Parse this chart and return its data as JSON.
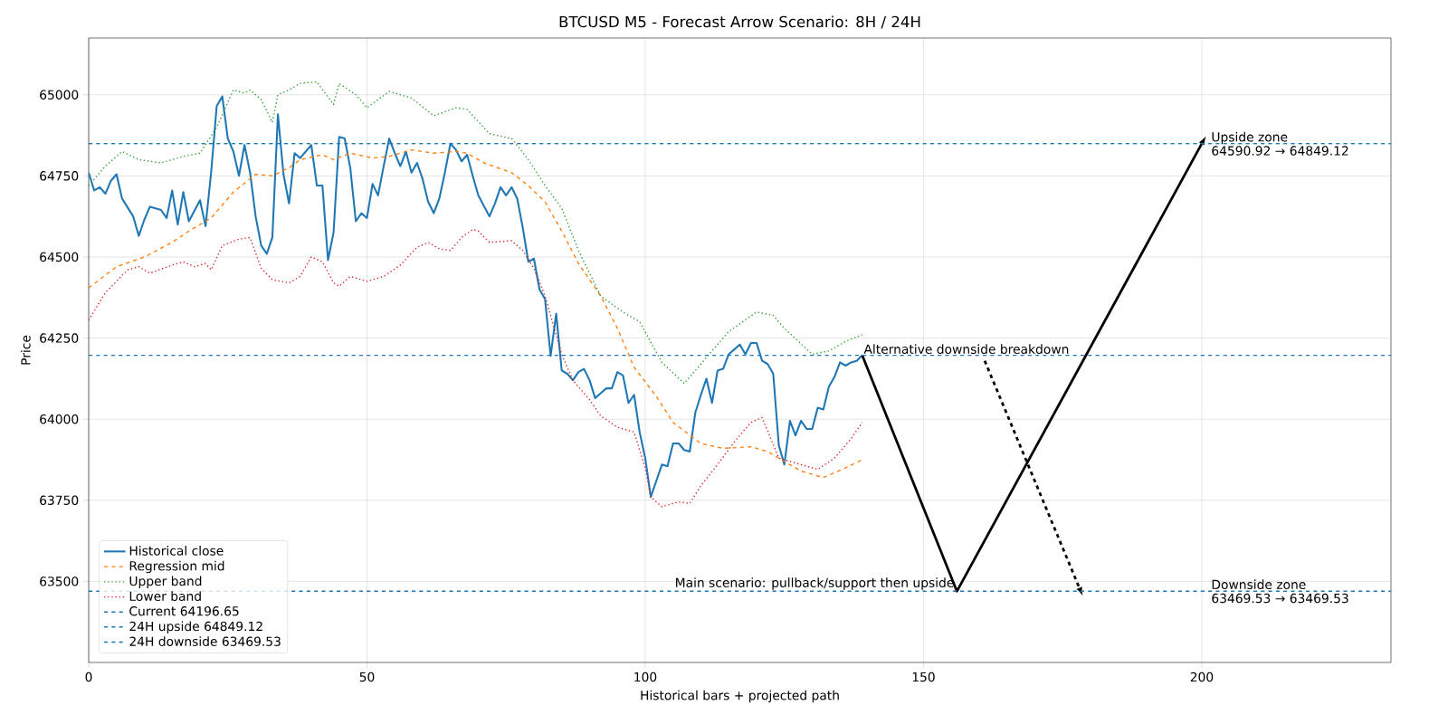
{
  "chart_data": {
    "type": "line",
    "title": "BTCUSD M5 - Forecast Arrow Scenario: 8H / 24H",
    "xlabel": "Historical bars + projected path",
    "ylabel": "Price",
    "xlim": [
      0,
      234
    ],
    "ylim": [
      63250,
      65175
    ],
    "xticks": [
      0,
      50,
      100,
      150,
      200
    ],
    "yticks": [
      63500,
      63750,
      64000,
      64250,
      64500,
      64750,
      65000
    ],
    "grid": true,
    "legend": "bottom left",
    "series": [
      {
        "name": "Historical close",
        "color": "#1f77b4",
        "line_style": "solid",
        "x": [
          0,
          1,
          2,
          3,
          4,
          5,
          6,
          8,
          9,
          10,
          11,
          13,
          14,
          15,
          16,
          17,
          18,
          20,
          21,
          22,
          23,
          24,
          25,
          26,
          27,
          28,
          29,
          30,
          31,
          32,
          33,
          34,
          35,
          36,
          37,
          38,
          40,
          41,
          42,
          43,
          44,
          45,
          46,
          47,
          48,
          49,
          50,
          51,
          52,
          53,
          54,
          55,
          56,
          57,
          58,
          59,
          60,
          61,
          62,
          63,
          64,
          65,
          66,
          67,
          68,
          69,
          70,
          72,
          73,
          74,
          75,
          76,
          77,
          78,
          79,
          80,
          81,
          82,
          83,
          84,
          85,
          86,
          87,
          88,
          89,
          90,
          91,
          92,
          93,
          94,
          95,
          96,
          97,
          98,
          99,
          100,
          101,
          102,
          103,
          104,
          105,
          106,
          107,
          108,
          109,
          110,
          111,
          112,
          113,
          114,
          115,
          116,
          117,
          118,
          119,
          120,
          121,
          122,
          123,
          124,
          125,
          126,
          127,
          128,
          129,
          130,
          131,
          132,
          133,
          134,
          135,
          136,
          137,
          138,
          139
        ],
        "values": [
          64760,
          64705,
          64715,
          64695,
          64735,
          64755,
          64680,
          64625,
          64565,
          64615,
          64655,
          64645,
          64620,
          64705,
          64600,
          64700,
          64610,
          64675,
          64595,
          64760,
          64965,
          64995,
          64865,
          64825,
          64750,
          64845,
          64760,
          64625,
          64535,
          64510,
          64560,
          64940,
          64755,
          64665,
          64820,
          64805,
          64845,
          64720,
          64720,
          64490,
          64575,
          64870,
          64865,
          64775,
          64610,
          64635,
          64620,
          64725,
          64690,
          64780,
          64865,
          64820,
          64780,
          64825,
          64760,
          64790,
          64740,
          64670,
          64635,
          64680,
          64760,
          64850,
          64830,
          64795,
          64815,
          64750,
          64690,
          64625,
          64665,
          64715,
          64690,
          64715,
          64680,
          64590,
          64485,
          64495,
          64400,
          64370,
          64195,
          64325,
          64150,
          64140,
          64120,
          64145,
          64155,
          64120,
          64065,
          64080,
          64095,
          64095,
          64145,
          64135,
          64050,
          64075,
          63960,
          63880,
          63760,
          63810,
          63860,
          63855,
          63925,
          63925,
          63905,
          63900,
          64020,
          64075,
          64125,
          64050,
          64150,
          64155,
          64200,
          64215,
          64230,
          64200,
          64235,
          64235,
          64180,
          64170,
          64140,
          63920,
          63860,
          63995,
          63950,
          63995,
          63970,
          63970,
          64035,
          64030,
          64100,
          64130,
          64175,
          64165,
          64175,
          64180,
          64197
        ]
      },
      {
        "name": "Regression mid",
        "color": "#ff7f0e",
        "line_style": "dashed",
        "x": [
          0,
          5,
          10,
          15,
          18,
          22,
          26,
          30,
          33,
          36,
          38,
          42,
          44,
          47,
          51,
          54,
          58,
          62,
          66,
          68,
          71,
          76,
          79,
          82,
          85,
          88,
          92,
          95,
          98,
          102,
          105,
          110,
          114,
          119,
          122,
          125,
          128,
          132,
          136,
          139
        ],
        "values": [
          64405,
          64470,
          64500,
          64545,
          64580,
          64620,
          64700,
          64755,
          64750,
          64775,
          64800,
          64815,
          64800,
          64820,
          64805,
          64810,
          64830,
          64820,
          64825,
          64820,
          64790,
          64760,
          64720,
          64670,
          64580,
          64480,
          64380,
          64280,
          64160,
          64070,
          63990,
          63925,
          63910,
          63915,
          63900,
          63870,
          63840,
          63820,
          63850,
          63875
        ]
      },
      {
        "name": "Upper band",
        "color": "#2ca02c",
        "line_style": "dotted",
        "x": [
          0,
          3,
          6,
          9,
          13,
          17,
          20,
          23,
          26,
          28,
          29,
          31,
          33,
          34,
          36,
          38,
          41,
          44,
          45,
          48,
          50,
          54,
          58,
          62,
          66,
          68,
          72,
          76,
          79,
          82,
          85,
          88,
          92,
          96,
          99,
          103,
          107,
          110,
          115,
          120,
          123,
          125,
          130,
          133,
          136,
          139
        ],
        "values": [
          64720,
          64780,
          64825,
          64800,
          64790,
          64810,
          64820,
          64900,
          65015,
          65005,
          65015,
          64985,
          64915,
          65000,
          65015,
          65035,
          65040,
          64970,
          65035,
          65000,
          64960,
          65010,
          64990,
          64935,
          64960,
          64955,
          64880,
          64865,
          64800,
          64720,
          64650,
          64520,
          64380,
          64330,
          64300,
          64175,
          64110,
          64170,
          64270,
          64330,
          64320,
          64280,
          64200,
          64210,
          64240,
          64260
        ]
      },
      {
        "name": "Lower band",
        "color": "#d62728",
        "line_style": "dotted",
        "x": [
          0,
          3,
          7,
          9,
          11,
          15,
          17,
          19,
          21,
          22,
          24,
          27,
          29,
          31,
          33,
          36,
          38,
          40,
          42,
          44,
          45,
          47,
          50,
          53,
          56,
          59,
          61,
          63,
          65,
          67,
          69,
          70,
          72,
          76,
          78,
          80,
          82,
          85,
          87,
          90,
          92,
          95,
          98,
          100,
          101,
          103,
          106,
          108,
          110,
          113,
          116,
          119,
          121,
          124,
          128,
          131,
          134,
          137,
          139
        ],
        "values": [
          64305,
          64390,
          64460,
          64470,
          64450,
          64475,
          64485,
          64470,
          64480,
          64460,
          64535,
          64555,
          64560,
          64465,
          64430,
          64420,
          64440,
          64500,
          64485,
          64420,
          64410,
          64440,
          64425,
          64440,
          64475,
          64530,
          64545,
          64525,
          64520,
          64560,
          64585,
          64580,
          64545,
          64550,
          64520,
          64465,
          64380,
          64200,
          64120,
          64060,
          64010,
          63975,
          63960,
          63850,
          63760,
          63730,
          63745,
          63740,
          63795,
          63860,
          63930,
          63990,
          64005,
          63880,
          63860,
          63845,
          63880,
          63940,
          63990
        ]
      },
      {
        "color": "#000000",
        "line_style": "solid",
        "x": [
          139,
          156,
          200
        ],
        "values": [
          64196.65,
          63469.53,
          64849.12
        ]
      },
      {
        "color": "#000000",
        "line_style": "dashed",
        "x": [
          161,
          178
        ],
        "values": [
          64180,
          63480
        ]
      }
    ],
    "ref_lines": [
      {
        "axis": "y",
        "value": 64196.65,
        "label": "Current 64196.65",
        "color": "#1f77b4",
        "line_style": "dashed"
      },
      {
        "axis": "y",
        "value": 64849.12,
        "label": "24H upside 64849.12",
        "color": "#1f77b4",
        "line_style": "dashed"
      },
      {
        "axis": "y",
        "value": 63469.53,
        "label": "24H downside 63469.53",
        "color": "#1f77b4",
        "line_style": "dashed"
      }
    ],
    "annotations": [
      {
        "text": "Alternative downside breakdown",
        "x": 139,
        "y": 64196.65
      },
      {
        "text": "Main scenario: pullback/support then upside",
        "x": 156,
        "y": 63469.53
      },
      {
        "text": "Upside zone",
        "x": 200,
        "y": 64849.12
      },
      {
        "text": "64590.92 → 64849.12",
        "x": 200,
        "y": 64849.12
      },
      {
        "text": "Downside zone",
        "x": 200,
        "y": 63469.53
      },
      {
        "text": "63469.53 → 63469.53",
        "x": 200,
        "y": 63469.53
      }
    ]
  }
}
